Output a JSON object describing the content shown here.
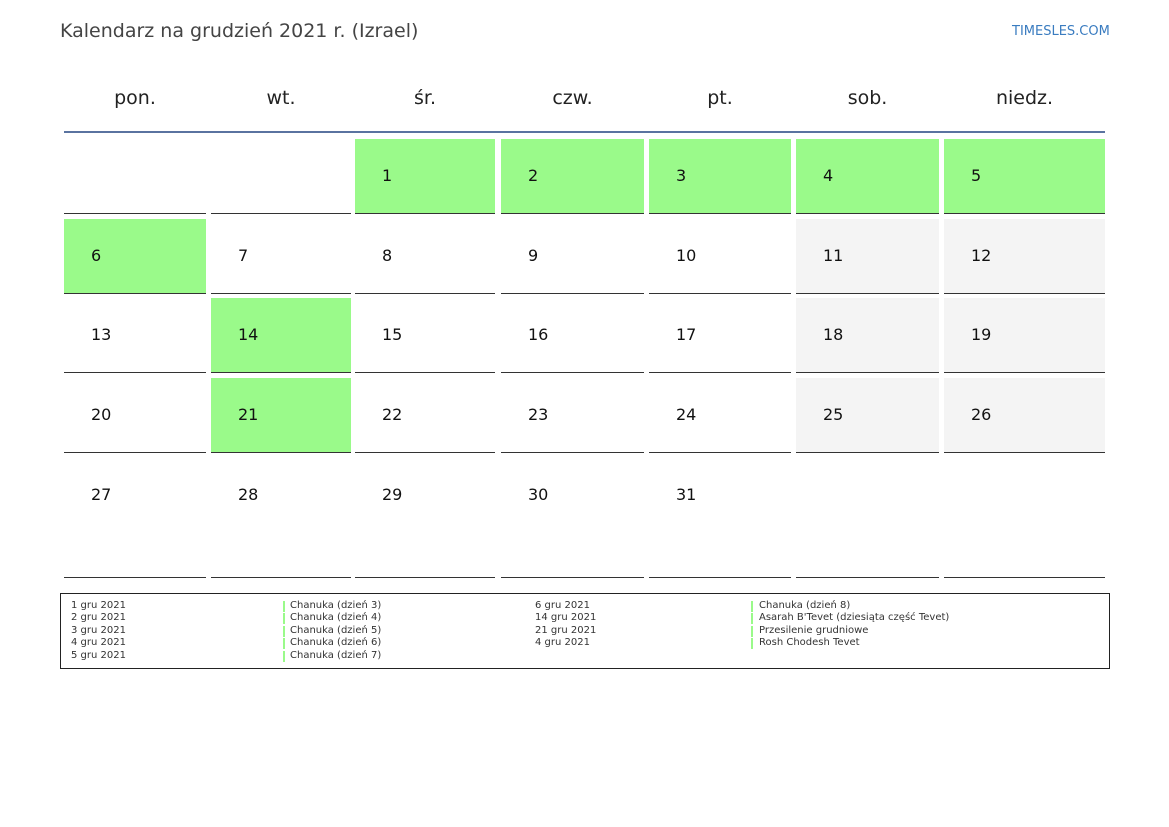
{
  "header": {
    "title": "Kalendarz na grudzień 2021 r. (Izrael)",
    "site": "TIMESLES.COM"
  },
  "calendar": {
    "weekdays": [
      "pon.",
      "wt.",
      "śr.",
      "czw.",
      "pt.",
      "sob.",
      "niedz."
    ],
    "holiday_color": "#9afa8a",
    "weekend_color": "#f4f4f4",
    "weeks": [
      [
        null,
        null,
        {
          "day": 1,
          "holiday": true
        },
        {
          "day": 2,
          "holiday": true
        },
        {
          "day": 3,
          "holiday": true
        },
        {
          "day": 4,
          "holiday": true
        },
        {
          "day": 5,
          "holiday": true
        }
      ],
      [
        {
          "day": 6,
          "holiday": true
        },
        {
          "day": 7
        },
        {
          "day": 8
        },
        {
          "day": 9
        },
        {
          "day": 10
        },
        {
          "day": 11,
          "weekend": true
        },
        {
          "day": 12,
          "weekend": true
        }
      ],
      [
        {
          "day": 13
        },
        {
          "day": 14,
          "holiday": true
        },
        {
          "day": 15
        },
        {
          "day": 16
        },
        {
          "day": 17
        },
        {
          "day": 18,
          "weekend": true
        },
        {
          "day": 19,
          "weekend": true
        }
      ],
      [
        {
          "day": 20
        },
        {
          "day": 21,
          "holiday": true
        },
        {
          "day": 22
        },
        {
          "day": 23
        },
        {
          "day": 24
        },
        {
          "day": 25,
          "weekend": true
        },
        {
          "day": 26,
          "weekend": true
        }
      ],
      [
        {
          "day": 27
        },
        {
          "day": 28
        },
        {
          "day": 29
        },
        {
          "day": 30
        },
        {
          "day": 31
        },
        null,
        null
      ]
    ]
  },
  "holidays": [
    [
      {
        "date": "1 gru 2021",
        "name": "Chanuka (dzień 3)"
      },
      {
        "date": "2 gru 2021",
        "name": "Chanuka (dzień 4)"
      },
      {
        "date": "3 gru 2021",
        "name": "Chanuka (dzień 5)"
      },
      {
        "date": "4 gru 2021",
        "name": "Chanuka (dzień 6)"
      },
      {
        "date": "5 gru 2021",
        "name": "Chanuka (dzień 7)"
      }
    ],
    [
      {
        "date": "6 gru 2021",
        "name": "Chanuka (dzień 8)"
      },
      {
        "date": "14 gru 2021",
        "name": "Asarah B'Tevet (dziesiąta część Tevet)"
      },
      {
        "date": "21 gru 2021",
        "name": "Przesilenie grudniowe"
      },
      {
        "date": "4 gru 2021",
        "name": "Rosh Chodesh Tevet"
      }
    ]
  ]
}
